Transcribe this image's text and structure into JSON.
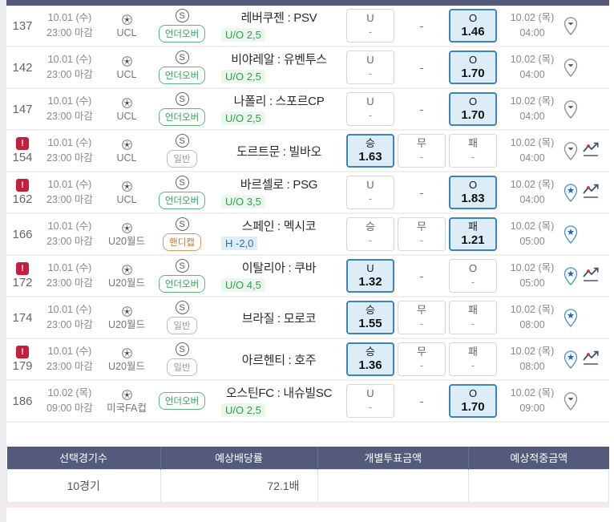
{
  "colors": {
    "header_navy": "#545a7b",
    "alert_red": "#c41f3e",
    "under_over_green": "#2f9e53",
    "handicap_blue": "#2f6fb5",
    "handicap_badge_orange": "#c4763a",
    "selected_cell_bg": "#dcedf8",
    "selected_cell_border": "#3c83c4",
    "bottom_strip_pink": "#f8e8ea"
  },
  "icons": {
    "league": "soccer-ball-icon",
    "single_available": "single-s-icon",
    "alert": "alert-icon",
    "pin_caret": "pin-caret-icon",
    "pin_star": "pin-star-icon",
    "odds_chart": "odds-chart-icon"
  },
  "rows": [
    {
      "num": "137",
      "alert": false,
      "date1": "10.01 (수)",
      "date2": "23:00 마감",
      "league": "UCL",
      "has_s": true,
      "type_badge": {
        "label": "언더오버",
        "kind": "uo"
      },
      "teams": "레버쿠젠 : PSV",
      "sub": {
        "text": "U/O 2,5",
        "kind": "uo"
      },
      "bets": [
        {
          "label": "U",
          "value": "-",
          "style": "box"
        },
        {
          "label": "",
          "value": "-",
          "style": "plain"
        },
        {
          "label": "O",
          "value": "1.46",
          "style": "selected"
        }
      ],
      "result1": "10.02 (목)",
      "result2": "04:00",
      "pin": "caret",
      "chart": false
    },
    {
      "num": "142",
      "alert": false,
      "date1": "10.01 (수)",
      "date2": "23:00 마감",
      "league": "UCL",
      "has_s": true,
      "type_badge": {
        "label": "언더오버",
        "kind": "uo"
      },
      "teams": "비야레알 : 유벤투스",
      "sub": {
        "text": "U/O 2,5",
        "kind": "uo"
      },
      "bets": [
        {
          "label": "U",
          "value": "-",
          "style": "box"
        },
        {
          "label": "",
          "value": "-",
          "style": "plain"
        },
        {
          "label": "O",
          "value": "1.70",
          "style": "selected"
        }
      ],
      "result1": "10.02 (목)",
      "result2": "04:00",
      "pin": "caret",
      "chart": false
    },
    {
      "num": "147",
      "alert": false,
      "date1": "10.01 (수)",
      "date2": "23:00 마감",
      "league": "UCL",
      "has_s": true,
      "type_badge": {
        "label": "언더오버",
        "kind": "uo"
      },
      "teams": "나폴리 : 스포르CP",
      "sub": {
        "text": "U/O 2,5",
        "kind": "uo"
      },
      "bets": [
        {
          "label": "U",
          "value": "-",
          "style": "box"
        },
        {
          "label": "",
          "value": "-",
          "style": "plain"
        },
        {
          "label": "O",
          "value": "1.70",
          "style": "selected"
        }
      ],
      "result1": "10.02 (목)",
      "result2": "04:00",
      "pin": "caret",
      "chart": false
    },
    {
      "num": "154",
      "alert": true,
      "date1": "10.01 (수)",
      "date2": "23:00 마감",
      "league": "UCL",
      "has_s": true,
      "type_badge": {
        "label": "일반",
        "kind": "normal"
      },
      "teams": "도르트문 : 빌바오",
      "sub": null,
      "bets": [
        {
          "label": "승",
          "value": "1.63",
          "style": "selected"
        },
        {
          "label": "무",
          "value": "-",
          "style": "box"
        },
        {
          "label": "패",
          "value": "-",
          "style": "box"
        }
      ],
      "result1": "10.02 (목)",
      "result2": "04:00",
      "pin": "caret",
      "chart": true
    },
    {
      "num": "162",
      "alert": true,
      "date1": "10.01 (수)",
      "date2": "23:00 마감",
      "league": "UCL",
      "has_s": true,
      "type_badge": {
        "label": "언더오버",
        "kind": "uo"
      },
      "teams": "바르셀로 : PSG",
      "sub": {
        "text": "U/O 3,5",
        "kind": "uo"
      },
      "bets": [
        {
          "label": "U",
          "value": "-",
          "style": "box"
        },
        {
          "label": "",
          "value": "-",
          "style": "plain"
        },
        {
          "label": "O",
          "value": "1.83",
          "style": "selected"
        }
      ],
      "result1": "10.02 (목)",
      "result2": "04:00",
      "pin": "star",
      "chart": true
    },
    {
      "num": "166",
      "alert": false,
      "date1": "10.01 (수)",
      "date2": "23:00 마감",
      "league": "U20월드",
      "has_s": true,
      "type_badge": {
        "label": "핸디캡",
        "kind": "handicap"
      },
      "teams": "스페인 : 멕시코",
      "sub": {
        "text": "H -2,0",
        "kind": "handicap"
      },
      "bets": [
        {
          "label": "승",
          "value": "-",
          "style": "box"
        },
        {
          "label": "무",
          "value": "-",
          "style": "box"
        },
        {
          "label": "패",
          "value": "1.21",
          "style": "selected"
        }
      ],
      "result1": "10.02 (목)",
      "result2": "05:00",
      "pin": "star",
      "chart": false
    },
    {
      "num": "172",
      "alert": true,
      "date1": "10.01 (수)",
      "date2": "23:00 마감",
      "league": "U20월드",
      "has_s": true,
      "type_badge": {
        "label": "언더오버",
        "kind": "uo"
      },
      "teams": "이탈리아 : 쿠바",
      "sub": {
        "text": "U/O 4,5",
        "kind": "uo"
      },
      "bets": [
        {
          "label": "U",
          "value": "1.32",
          "style": "selected"
        },
        {
          "label": "",
          "value": "-",
          "style": "plain"
        },
        {
          "label": "O",
          "value": "-",
          "style": "box"
        }
      ],
      "result1": "10.02 (목)",
      "result2": "05:00",
      "pin": "star",
      "chart": true
    },
    {
      "num": "174",
      "alert": false,
      "date1": "10.01 (수)",
      "date2": "23:00 마감",
      "league": "U20월드",
      "has_s": true,
      "type_badge": {
        "label": "일반",
        "kind": "normal"
      },
      "teams": "브라질 : 모로코",
      "sub": null,
      "bets": [
        {
          "label": "승",
          "value": "1.55",
          "style": "selected"
        },
        {
          "label": "무",
          "value": "-",
          "style": "box"
        },
        {
          "label": "패",
          "value": "-",
          "style": "box"
        }
      ],
      "result1": "10.02 (목)",
      "result2": "08:00",
      "pin": "star",
      "chart": false
    },
    {
      "num": "179",
      "alert": true,
      "date1": "10.01 (수)",
      "date2": "23:00 마감",
      "league": "U20월드",
      "has_s": true,
      "type_badge": {
        "label": "일반",
        "kind": "normal"
      },
      "teams": "아르헨티 : 호주",
      "sub": null,
      "bets": [
        {
          "label": "승",
          "value": "1.36",
          "style": "selected"
        },
        {
          "label": "무",
          "value": "-",
          "style": "box"
        },
        {
          "label": "패",
          "value": "-",
          "style": "box"
        }
      ],
      "result1": "10.02 (목)",
      "result2": "08:00",
      "pin": "star",
      "chart": true
    },
    {
      "num": "186",
      "alert": false,
      "date1": "10.02 (목)",
      "date2": "09:00 마감",
      "league": "미국FA컵",
      "has_s": false,
      "type_badge": {
        "label": "언더오버",
        "kind": "uo"
      },
      "teams": "오스틴FC : 내슈빌SC",
      "sub": {
        "text": "U/O 2,5",
        "kind": "uo"
      },
      "bets": [
        {
          "label": "U",
          "value": "-",
          "style": "box"
        },
        {
          "label": "",
          "value": "-",
          "style": "plain"
        },
        {
          "label": "O",
          "value": "1.70",
          "style": "selected"
        }
      ],
      "result1": "10.02 (목)",
      "result2": "09:00",
      "pin": "caret",
      "chart": false
    }
  ],
  "summary": {
    "headers": [
      "선택경기수",
      "예상배당률",
      "개별투표금액",
      "예상적중금액"
    ],
    "row": {
      "games": "10경기",
      "odds": "72.1배",
      "bet_amount": "",
      "expected_amount": ""
    }
  }
}
